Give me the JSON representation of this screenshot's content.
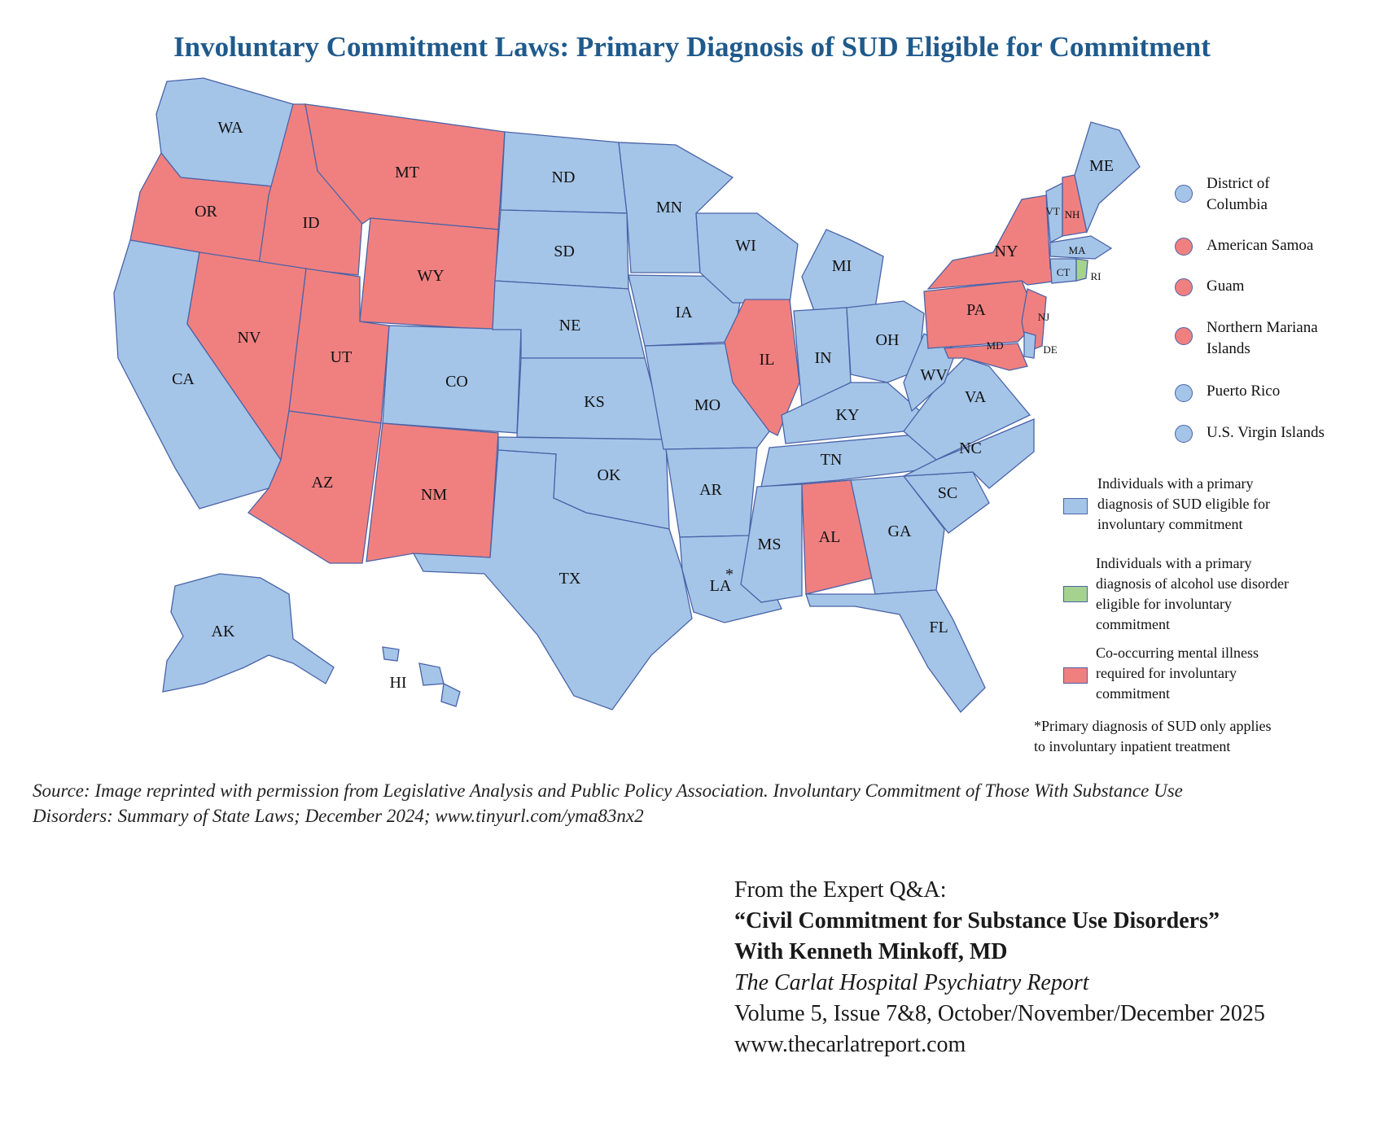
{
  "title": "Involuntary Commitment Laws: Primary Diagnosis of SUD Eligible for Commitment",
  "colors": {
    "sud_eligible": "#a4c5e8",
    "alcohol_only": "#a6d28f",
    "cooccurring_required": "#f08080",
    "border": "#4a63a8",
    "title": "#1f5a8c"
  },
  "map": {
    "states": {
      "WA": {
        "label": "WA",
        "category": "sud_eligible"
      },
      "OR": {
        "label": "OR",
        "category": "cooccurring_required"
      },
      "CA": {
        "label": "CA",
        "category": "sud_eligible"
      },
      "ID": {
        "label": "ID",
        "category": "cooccurring_required"
      },
      "NV": {
        "label": "NV",
        "category": "cooccurring_required"
      },
      "MT": {
        "label": "MT",
        "category": "cooccurring_required"
      },
      "WY": {
        "label": "WY",
        "category": "cooccurring_required"
      },
      "UT": {
        "label": "UT",
        "category": "cooccurring_required"
      },
      "AZ": {
        "label": "AZ",
        "category": "cooccurring_required"
      },
      "CO": {
        "label": "CO",
        "category": "sud_eligible"
      },
      "NM": {
        "label": "NM",
        "category": "cooccurring_required"
      },
      "ND": {
        "label": "ND",
        "category": "sud_eligible"
      },
      "SD": {
        "label": "SD",
        "category": "sud_eligible"
      },
      "NE": {
        "label": "NE",
        "category": "sud_eligible"
      },
      "KS": {
        "label": "KS",
        "category": "sud_eligible"
      },
      "OK": {
        "label": "OK",
        "category": "sud_eligible"
      },
      "TX": {
        "label": "TX",
        "category": "sud_eligible"
      },
      "MN": {
        "label": "MN",
        "category": "sud_eligible"
      },
      "IA": {
        "label": "IA",
        "category": "sud_eligible"
      },
      "MO": {
        "label": "MO",
        "category": "sud_eligible"
      },
      "AR": {
        "label": "AR",
        "category": "sud_eligible"
      },
      "LA": {
        "label": "LA",
        "category": "sud_eligible"
      },
      "WI": {
        "label": "WI",
        "category": "sud_eligible"
      },
      "IL": {
        "label": "IL",
        "category": "cooccurring_required"
      },
      "MI": {
        "label": "MI",
        "category": "sud_eligible"
      },
      "IN": {
        "label": "IN",
        "category": "sud_eligible"
      },
      "OH": {
        "label": "OH",
        "category": "sud_eligible"
      },
      "KY": {
        "label": "KY",
        "category": "sud_eligible"
      },
      "TN": {
        "label": "TN",
        "category": "sud_eligible"
      },
      "MS": {
        "label": "MS",
        "category": "sud_eligible"
      },
      "AL": {
        "label": "AL",
        "category": "cooccurring_required"
      },
      "GA": {
        "label": "GA",
        "category": "sud_eligible"
      },
      "FL": {
        "label": "FL",
        "category": "sud_eligible"
      },
      "SC": {
        "label": "SC",
        "category": "sud_eligible"
      },
      "NC": {
        "label": "NC",
        "category": "sud_eligible"
      },
      "VA": {
        "label": "VA",
        "category": "sud_eligible"
      },
      "WV": {
        "label": "WV",
        "category": "sud_eligible"
      },
      "PA": {
        "label": "PA",
        "category": "cooccurring_required"
      },
      "NY": {
        "label": "NY",
        "category": "cooccurring_required"
      },
      "NJ": {
        "label": "NJ",
        "category": "cooccurring_required"
      },
      "DE": {
        "label": "DE",
        "category": "sud_eligible"
      },
      "MD": {
        "label": "MD",
        "category": "cooccurring_required"
      },
      "VT": {
        "label": "VT",
        "category": "sud_eligible"
      },
      "NH": {
        "label": "NH",
        "category": "cooccurring_required"
      },
      "ME": {
        "label": "ME",
        "category": "sud_eligible"
      },
      "MA": {
        "label": "MA",
        "category": "sud_eligible"
      },
      "CT": {
        "label": "CT",
        "category": "sud_eligible"
      },
      "RI": {
        "label": "RI",
        "category": "alcohol_only"
      },
      "AK": {
        "label": "AK",
        "category": "sud_eligible"
      },
      "HI": {
        "label": "HI",
        "category": "sud_eligible"
      }
    },
    "la_asterisk": "*"
  },
  "territories": [
    {
      "name_line1": "District of",
      "name_line2": "Columbia",
      "category": "sud_eligible"
    },
    {
      "name_line1": "American Samoa",
      "name_line2": "",
      "category": "cooccurring_required"
    },
    {
      "name_line1": "Guam",
      "name_line2": "",
      "category": "cooccurring_required"
    },
    {
      "name_line1": "Northern Mariana",
      "name_line2": "Islands",
      "category": "cooccurring_required"
    },
    {
      "name_line1": "Puerto Rico",
      "name_line2": "",
      "category": "sud_eligible"
    },
    {
      "name_line1": "U.S. Virgin Islands",
      "name_line2": "",
      "category": "sud_eligible"
    }
  ],
  "legend": [
    {
      "lines": [
        "Individuals with a primary",
        "diagnosis of SUD eligible for",
        "involuntary commitment"
      ],
      "category": "sud_eligible"
    },
    {
      "lines": [
        "Individuals with a primary",
        "diagnosis of alcohol use disorder",
        "eligible for involuntary",
        "commitment"
      ],
      "category": "alcohol_only"
    },
    {
      "lines": [
        "Co-occurring mental illness",
        "required for involuntary",
        "commitment"
      ],
      "category": "cooccurring_required"
    }
  ],
  "footnote": {
    "line1": "*Primary diagnosis of SUD only applies",
    "line2": "to involuntary inpatient treatment"
  },
  "source": {
    "line1": "Source: Image reprinted with permission from Legislative Analysis and Public Policy Association. Involuntary Commitment of Those With Substance Use",
    "line2": "Disorders: Summary of State Laws; December 2024; www.tinyurl.com/yma83nx2"
  },
  "credits": {
    "line1": "From the Expert Q&A:",
    "line2": "“Civil Commitment for Substance Use Disorders”",
    "line3": "With Kenneth Minkoff, MD",
    "line4": "The Carlat Hospital Psychiatry Report",
    "line5": "Volume 5, Issue 7&8, October/November/December 2025",
    "line6": "www.thecarlatreport.com"
  }
}
